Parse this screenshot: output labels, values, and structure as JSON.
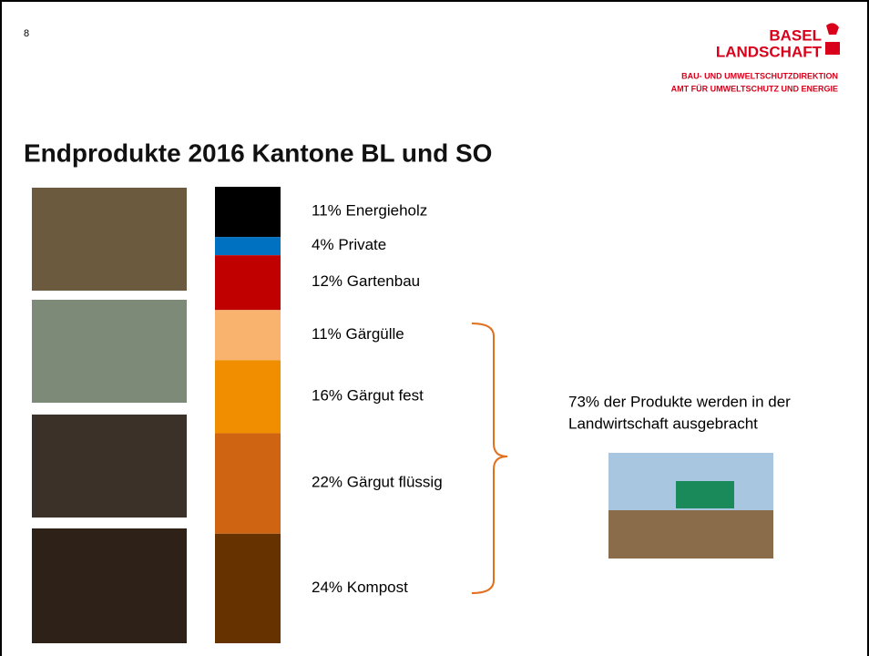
{
  "page_number": "8",
  "logo": {
    "line1": "BASEL",
    "line2": "LANDSCHAFT",
    "dept1": "BAU- UND UMWELTSCHUTZDIREKTION",
    "dept2": "AMT FÜR UMWELTSCHUTZ UND ENERGIE"
  },
  "chart_data": {
    "type": "stacked-bar",
    "title": "Endprodukte 2016 Kantone BL und SO",
    "ylim": [
      0,
      100
    ],
    "series": [
      {
        "name": "Energieholz",
        "color": "#000000",
        "values": [
          11
        ],
        "value_labels": [
          "11%"
        ]
      },
      {
        "name": "Private",
        "color": "#0070c0",
        "values": [
          4
        ],
        "value_labels": [
          "4%"
        ]
      },
      {
        "name": "Gartenbau",
        "color": "#c00000",
        "values": [
          12
        ],
        "value_labels": [
          "12%"
        ]
      },
      {
        "name": "Gärgülle",
        "color": "#fab36f",
        "values": [
          11
        ],
        "value_labels": [
          "11%"
        ]
      },
      {
        "name": "Gärgut fest",
        "color": "#f08e00",
        "values": [
          16
        ],
        "value_labels": [
          "16%"
        ]
      },
      {
        "name": "Gärgut flüssig",
        "color": "#cf6512",
        "values": [
          22
        ],
        "value_labels": [
          "22%"
        ]
      },
      {
        "name": "Kompost",
        "color": "#663300",
        "values": [
          24
        ],
        "value_labels": [
          "24%"
        ]
      }
    ],
    "annotation": [
      "73% der Produkte werden in der",
      "Landwirtschaft ausgebracht"
    ]
  }
}
